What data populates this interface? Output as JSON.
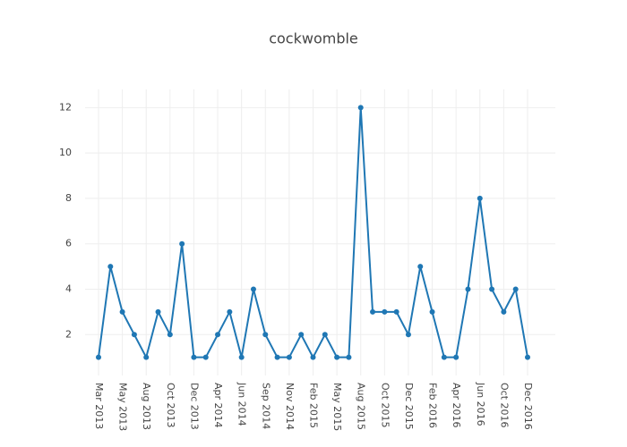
{
  "chart_data": {
    "type": "line",
    "title": "cockwomble",
    "categories": [
      "Mar 2013",
      null,
      "May 2013",
      null,
      "Aug 2013",
      null,
      "Oct 2013",
      null,
      "Dec 2013",
      null,
      "Apr 2014",
      null,
      "Jun 2014",
      null,
      "Sep 2014",
      null,
      "Nov 2014",
      null,
      "Feb 2015",
      null,
      "May 2015",
      null,
      "Aug 2015",
      null,
      "Oct 2015",
      null,
      "Dec 2015",
      null,
      "Feb 2016",
      null,
      "Apr 2016",
      null,
      "Jun 2016",
      null,
      "Oct 2016",
      null,
      "Dec 2016"
    ],
    "values": [
      1,
      5,
      3,
      2,
      1,
      3,
      2,
      6,
      1,
      1,
      2,
      3,
      1,
      4,
      2,
      1,
      1,
      2,
      1,
      2,
      1,
      1,
      12,
      3,
      3,
      3,
      2,
      5,
      3,
      1,
      1,
      4,
      8,
      4,
      3,
      4,
      1
    ],
    "color": "#1f77b4",
    "ylim": [
      0.2,
      12.8
    ],
    "yticks": [
      2,
      4,
      6,
      8,
      10,
      12
    ],
    "grid": true
  }
}
